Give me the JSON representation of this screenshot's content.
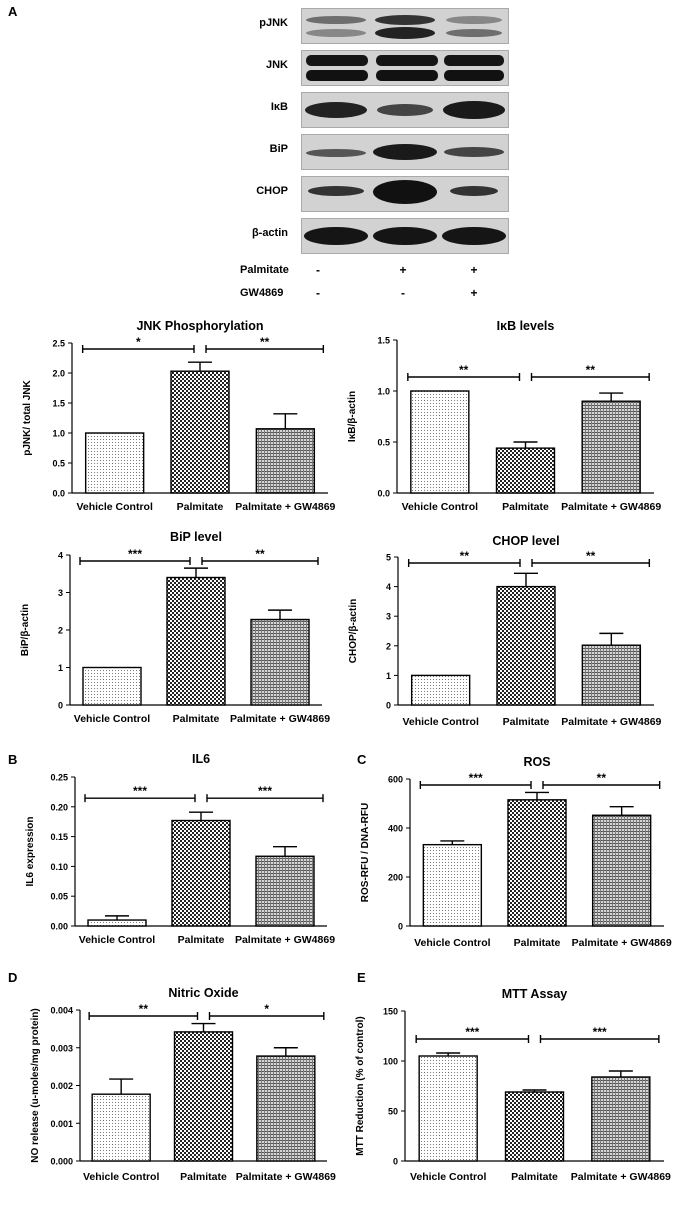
{
  "panel_letters": {
    "a": "A",
    "b": "B",
    "c": "C",
    "d": "D",
    "e": "E"
  },
  "blot": {
    "rows": [
      "pJNK",
      "JNK",
      "IκB",
      "BiP",
      "CHOP",
      "β-actin"
    ],
    "treatments": [
      {
        "label": "Palmitate",
        "signs": [
          "-",
          "+",
          "+"
        ]
      },
      {
        "label": "GW4869",
        "signs": [
          "-",
          "-",
          "+"
        ]
      }
    ]
  },
  "chart_data": [
    {
      "id": "jnk",
      "type": "bar",
      "title": "JNK Phosphorylation",
      "ylabel": "pJNK/ total JNK",
      "xlabel": "",
      "categories": [
        "Vehicle Control",
        "Palmitate",
        "Palmitate + GW4869"
      ],
      "values": [
        1.0,
        2.03,
        1.07
      ],
      "errors": [
        0,
        0.15,
        0.25
      ],
      "ylim": [
        0,
        2.5
      ],
      "ticks": [
        "0.0",
        "0.5",
        "1.0",
        "1.5",
        "2.0",
        "2.5"
      ],
      "annotations": [
        {
          "from": 0,
          "to": 1,
          "label": "*"
        },
        {
          "from": 1,
          "to": 2,
          "label": "**"
        }
      ]
    },
    {
      "id": "ikb",
      "type": "bar",
      "title": "IκB levels",
      "ylabel": "IκB/β-actin",
      "xlabel": "",
      "categories": [
        "Vehicle Control",
        "Palmitate",
        "Palmitate + GW4869"
      ],
      "values": [
        1.0,
        0.44,
        0.9
      ],
      "errors": [
        0,
        0.06,
        0.08
      ],
      "ylim": [
        0,
        1.5
      ],
      "ticks": [
        "0.0",
        "0.5",
        "1.0",
        "1.5"
      ],
      "annotations": [
        {
          "from": 0,
          "to": 1,
          "label": "**"
        },
        {
          "from": 1,
          "to": 2,
          "label": "**"
        }
      ]
    },
    {
      "id": "bip",
      "type": "bar",
      "title": "BiP level",
      "ylabel": "BiP/β-actin",
      "xlabel": "",
      "categories": [
        "Vehicle Control",
        "Palmitate",
        "Palmitate + GW4869"
      ],
      "values": [
        1.0,
        3.4,
        2.28
      ],
      "errors": [
        0,
        0.25,
        0.25
      ],
      "ylim": [
        0,
        4
      ],
      "ticks": [
        "0",
        "1",
        "2",
        "3",
        "4"
      ],
      "annotations": [
        {
          "from": 0,
          "to": 1,
          "label": "***"
        },
        {
          "from": 1,
          "to": 2,
          "label": "**"
        }
      ]
    },
    {
      "id": "chop",
      "type": "bar",
      "title": "CHOP level",
      "ylabel": "CHOP/β-actin",
      "xlabel": "",
      "categories": [
        "Vehicle Control",
        "Palmitate",
        "Palmitate + GW4869"
      ],
      "values": [
        1.0,
        4.0,
        2.02
      ],
      "errors": [
        0,
        0.45,
        0.4
      ],
      "ylim": [
        0,
        5
      ],
      "ticks": [
        "0",
        "1",
        "2",
        "3",
        "4",
        "5"
      ],
      "annotations": [
        {
          "from": 0,
          "to": 1,
          "label": "**"
        },
        {
          "from": 1,
          "to": 2,
          "label": "**"
        }
      ]
    },
    {
      "id": "il6",
      "type": "bar",
      "title": "IL6",
      "ylabel": "IL6 expression",
      "xlabel": "",
      "categories": [
        "Vehicle Control",
        "Palmitate",
        "Palmitate + GW4869"
      ],
      "values": [
        0.01,
        0.177,
        0.117
      ],
      "errors": [
        0.007,
        0.014,
        0.016
      ],
      "ylim": [
        0,
        0.25
      ],
      "ticks": [
        "0.00",
        "0.05",
        "0.10",
        "0.15",
        "0.20",
        "0.25"
      ],
      "annotations": [
        {
          "from": 0,
          "to": 1,
          "label": "***"
        },
        {
          "from": 1,
          "to": 2,
          "label": "***"
        }
      ]
    },
    {
      "id": "ros",
      "type": "bar",
      "title": "ROS",
      "ylabel": "ROS-RFU / DNA-RFU",
      "xlabel": "",
      "categories": [
        "Vehicle Control",
        "Palmitate",
        "Palmitate + GW4869"
      ],
      "values": [
        332,
        515,
        452
      ],
      "errors": [
        15,
        30,
        35
      ],
      "ylim": [
        0,
        600
      ],
      "ticks": [
        "0",
        "200",
        "400",
        "600"
      ],
      "annotations": [
        {
          "from": 0,
          "to": 1,
          "label": "***"
        },
        {
          "from": 1,
          "to": 2,
          "label": "**"
        }
      ]
    },
    {
      "id": "no",
      "type": "bar",
      "title": "Nitric Oxide",
      "ylabel": "NO release (u-moles/mg protein)",
      "xlabel": "",
      "categories": [
        "Vehicle Control",
        "Palmitate",
        "Palmitate + GW4869"
      ],
      "values": [
        0.00177,
        0.00342,
        0.00278
      ],
      "errors": [
        0.0004,
        0.00022,
        0.00022
      ],
      "ylim": [
        0,
        0.004
      ],
      "ticks": [
        "0.000",
        "0.001",
        "0.002",
        "0.003",
        "0.004"
      ],
      "annotations": [
        {
          "from": 0,
          "to": 1,
          "label": "**"
        },
        {
          "from": 1,
          "to": 2,
          "label": "*"
        }
      ]
    },
    {
      "id": "mtt",
      "type": "bar",
      "title": "MTT Assay",
      "ylabel": "MTT Reduction (% of control)",
      "xlabel": "",
      "categories": [
        "Vehicle Control",
        "Palmitate",
        "Palmitate + GW4869"
      ],
      "values": [
        105,
        69,
        84
      ],
      "errors": [
        3,
        2,
        6
      ],
      "ylim": [
        0,
        150
      ],
      "ticks": [
        "0",
        "50",
        "100",
        "150"
      ],
      "annotations": [
        {
          "from": 0,
          "to": 1,
          "label": "***"
        },
        {
          "from": 1,
          "to": 2,
          "label": "***"
        }
      ]
    }
  ]
}
